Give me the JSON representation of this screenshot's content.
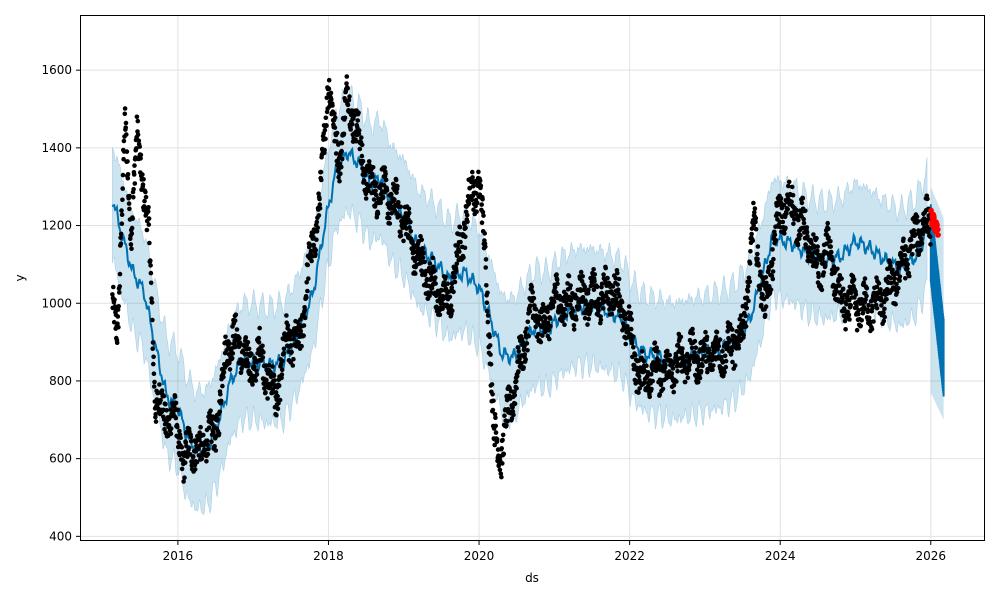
{
  "chart_data": {
    "type": "line",
    "xlabel": "ds",
    "ylabel": "y",
    "xlim": [
      2014.7,
      2026.72
    ],
    "ylim": [
      388,
      1742
    ],
    "grid": true,
    "colors": {
      "forecast_line": "#0072B2",
      "uncertainty_band": "#0072B2",
      "observed_points": "#000000",
      "recent_points": "#ff0000",
      "forecast_bar": "#0072B2"
    },
    "x_ticks": [
      {
        "value": 2016,
        "label": "2016"
      },
      {
        "value": 2018,
        "label": "2018"
      },
      {
        "value": 2020,
        "label": "2020"
      },
      {
        "value": 2022,
        "label": "2022"
      },
      {
        "value": 2024,
        "label": "2024"
      },
      {
        "value": 2026,
        "label": "2026"
      }
    ],
    "y_ticks": [
      {
        "value": 400,
        "label": "400"
      },
      {
        "value": 600,
        "label": "600"
      },
      {
        "value": 800,
        "label": "800"
      },
      {
        "value": 1000,
        "label": "1000"
      },
      {
        "value": 1200,
        "label": "1200"
      },
      {
        "value": 1400,
        "label": "1400"
      },
      {
        "value": 1600,
        "label": "1600"
      }
    ],
    "series": [
      {
        "role": "forecast",
        "x": [
          2015.13,
          2015.25,
          2015.4,
          2015.55,
          2015.7,
          2015.85,
          2016.0,
          2016.12,
          2016.25,
          2016.4,
          2016.55,
          2016.7,
          2016.85,
          2017.0,
          2017.2,
          2017.4,
          2017.6,
          2017.8,
          2017.95,
          2018.1,
          2018.25,
          2018.4,
          2018.55,
          2018.7,
          2018.85,
          2019.0,
          2019.2,
          2019.4,
          2019.6,
          2019.8,
          2020.0,
          2020.15,
          2020.3,
          2020.45,
          2020.6,
          2020.75,
          2020.9,
          2021.1,
          2021.3,
          2021.5,
          2021.7,
          2021.9,
          2022.05,
          2022.2,
          2022.4,
          2022.6,
          2022.8,
          2023.0,
          2023.2,
          2023.4,
          2023.6,
          2023.75,
          2023.9,
          2024.05,
          2024.2,
          2024.4,
          2024.6,
          2024.8,
          2025.0,
          2025.2,
          2025.4,
          2025.6,
          2025.8,
          2025.95
        ],
        "y": [
          1270,
          1180,
          1080,
          1030,
          890,
          760,
          730,
          660,
          620,
          630,
          700,
          800,
          850,
          850,
          840,
          850,
          920,
          1030,
          1200,
          1340,
          1390,
          1360,
          1310,
          1320,
          1250,
          1220,
          1140,
          1110,
          1060,
          1080,
          1040,
          960,
          870,
          860,
          900,
          940,
          930,
          970,
          990,
          990,
          980,
          960,
          900,
          870,
          860,
          850,
          860,
          870,
          880,
          900,
          960,
          1060,
          1170,
          1160,
          1150,
          1120,
          1110,
          1120,
          1160,
          1140,
          1110,
          1090,
          1120,
          1190
        ],
        "lower": [
          1120,
          1030,
          930,
          880,
          740,
          610,
          580,
          500,
          470,
          480,
          550,
          650,
          700,
          700,
          690,
          700,
          770,
          880,
          1050,
          1190,
          1240,
          1210,
          1160,
          1170,
          1100,
          1070,
          990,
          960,
          910,
          930,
          890,
          810,
          720,
          710,
          750,
          790,
          780,
          820,
          840,
          840,
          830,
          810,
          750,
          720,
          710,
          700,
          710,
          720,
          730,
          750,
          810,
          910,
          1020,
          1010,
          1000,
          970,
          960,
          970,
          1010,
          990,
          960,
          940,
          970,
          1040
        ],
        "upper": [
          1410,
          1330,
          1230,
          1180,
          1040,
          910,
          880,
          810,
          770,
          780,
          850,
          950,
          1000,
          1000,
          990,
          1000,
          1070,
          1180,
          1350,
          1490,
          1540,
          1510,
          1460,
          1470,
          1400,
          1370,
          1290,
          1260,
          1210,
          1230,
          1190,
          1110,
          1020,
          1010,
          1050,
          1090,
          1080,
          1120,
          1140,
          1140,
          1130,
          1110,
          1050,
          1020,
          1010,
          1000,
          1010,
          1020,
          1030,
          1050,
          1110,
          1210,
          1320,
          1310,
          1300,
          1270,
          1260,
          1270,
          1310,
          1290,
          1260,
          1240,
          1270,
          1340
        ]
      },
      {
        "role": "observed",
        "x": [
          2015.13,
          2015.2,
          2015.3,
          2015.38,
          2015.46,
          2015.55,
          2015.62,
          2015.7,
          2015.8,
          2015.9,
          2016.0,
          2016.08,
          2016.16,
          2016.25,
          2016.35,
          2016.45,
          2016.55,
          2016.65,
          2016.8,
          2016.95,
          2017.1,
          2017.3,
          2017.45,
          2017.6,
          2017.75,
          2017.9,
          2018.0,
          2018.08,
          2018.15,
          2018.25,
          2018.35,
          2018.45,
          2018.55,
          2018.7,
          2018.85,
          2019.0,
          2019.15,
          2019.3,
          2019.45,
          2019.6,
          2019.75,
          2019.9,
          2020.0,
          2020.1,
          2020.2,
          2020.3,
          2020.4,
          2020.55,
          2020.7,
          2020.85,
          2021.0,
          2021.2,
          2021.4,
          2021.6,
          2021.8,
          2022.0,
          2022.15,
          2022.3,
          2022.5,
          2022.7,
          2022.9,
          2023.1,
          2023.3,
          2023.5,
          2023.65,
          2023.8,
          2023.95,
          2024.1,
          2024.3,
          2024.5,
          2024.65,
          2024.8,
          2024.95,
          2025.1,
          2025.3,
          2025.5,
          2025.7,
          2025.9,
          2026.0
        ],
        "y": [
          980,
          950,
          1450,
          1200,
          1420,
          1300,
          1150,
          760,
          720,
          700,
          700,
          560,
          660,
          600,
          650,
          650,
          720,
          900,
          900,
          830,
          870,
          750,
          920,
          880,
          1100,
          1280,
          1600,
          1420,
          1380,
          1530,
          1470,
          1370,
          1300,
          1290,
          1260,
          1220,
          1130,
          1080,
          1020,
          1000,
          1150,
          1290,
          1310,
          1080,
          650,
          620,
          730,
          850,
          990,
          930,
          1010,
          1000,
          1020,
          1010,
          1040,
          920,
          800,
          830,
          820,
          860,
          860,
          870,
          880,
          920,
          1200,
          980,
          1200,
          1260,
          1200,
          1090,
          1140,
          1000,
          1000,
          990,
          1000,
          1050,
          1130,
          1210,
          1200
        ],
        "count": 2700
      },
      {
        "role": "recent",
        "x": [
          2026.0,
          2026.03,
          2026.06,
          2026.08,
          2026.1
        ],
        "y": [
          1225,
          1215,
          1200,
          1190,
          1175
        ],
        "count": 30
      },
      {
        "role": "forecast_tail",
        "x": [
          2026.0,
          2026.17
        ],
        "y": [
          1145,
          850
        ],
        "lower": [
          770,
          700
        ],
        "upper": [
          1300,
          1220
        ]
      }
    ]
  }
}
